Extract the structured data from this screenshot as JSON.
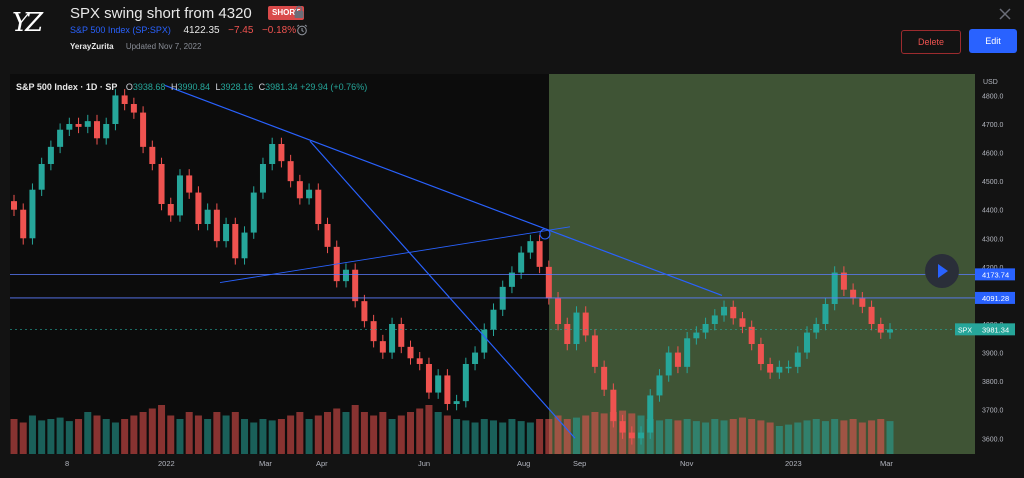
{
  "header": {
    "logo_text": "YZ",
    "title": "SPX swing short from 4320",
    "badge": "SHORT",
    "symbol_name": "S&P 500 Index",
    "symbol_code": "(SP:SPX)",
    "price": "4122.35",
    "change": "−7.45",
    "change_pct": "−0.18%",
    "author": "YerayZurita",
    "updated": "Updated Nov 7, 2022",
    "delete_label": "Delete",
    "edit_label": "Edit"
  },
  "legend": {
    "title": "S&P 500 Index · 1D · SP",
    "o_label": "O",
    "o_value": "3938.68",
    "h_label": "H",
    "h_value": "3990.84",
    "l_label": "L",
    "l_value": "3928.16",
    "c_label": "C",
    "c_value": "3981.34 +29.94 (+0.76%)"
  },
  "axis": {
    "currency": "USD",
    "y_ticks": [
      3600,
      3700,
      3800,
      3900,
      4000,
      4100,
      4200,
      4300,
      4400,
      4500,
      4600,
      4700,
      4800
    ],
    "x_labels": [
      "8",
      "2022",
      "Mar",
      "Apr",
      "Jun",
      "Aug",
      "Sep",
      "Nov",
      "2023",
      "Mar"
    ],
    "price_labels": [
      {
        "text": "4173.74",
        "value": 4173.74
      },
      {
        "text": "4091.28",
        "value": 4091.28
      }
    ],
    "last_label": {
      "symbol": "SPX",
      "text": "3981.34",
      "value": 3981.34
    }
  },
  "colors": {
    "up": "#26a69a",
    "down": "#ef5350",
    "highlight": "#3f5435",
    "trendline": "#2962ff"
  },
  "icons": {
    "lock": "lock-icon",
    "alarm": "alarm-icon",
    "close": "close-icon",
    "play": "play-icon"
  },
  "chart_data": {
    "type": "candlestick",
    "title": "S&P 500 Index · 1D · SP",
    "ylabel": "USD",
    "ylim": [
      3580,
      4840
    ],
    "closes": [
      4400,
      4300,
      4470,
      4560,
      4620,
      4680,
      4700,
      4690,
      4710,
      4650,
      4700,
      4800,
      4770,
      4740,
      4620,
      4560,
      4420,
      4380,
      4520,
      4460,
      4350,
      4400,
      4290,
      4350,
      4230,
      4320,
      4460,
      4560,
      4630,
      4570,
      4500,
      4440,
      4470,
      4350,
      4270,
      4150,
      4190,
      4080,
      4010,
      3940,
      3900,
      4000,
      3920,
      3880,
      3860,
      3760,
      3820,
      3720,
      3730,
      3860,
      3900,
      3980,
      4050,
      4130,
      4180,
      4250,
      4290,
      4200,
      4090,
      4000,
      3930,
      4040,
      3960,
      3850,
      3770,
      3660,
      3620,
      3600,
      3620,
      3750,
      3820,
      3900,
      3850,
      3950,
      3970,
      4000,
      4030,
      4060,
      4020,
      3990,
      3930,
      3860,
      3830,
      3850,
      3850,
      3900,
      3970,
      4000,
      4070,
      4180,
      4120,
      4090,
      4060,
      4000,
      3970,
      3981
    ],
    "volume_rel": [
      0.5,
      0.45,
      0.55,
      0.48,
      0.5,
      0.52,
      0.47,
      0.5,
      0.6,
      0.55,
      0.5,
      0.45,
      0.5,
      0.55,
      0.6,
      0.65,
      0.7,
      0.55,
      0.5,
      0.6,
      0.55,
      0.5,
      0.6,
      0.55,
      0.6,
      0.5,
      0.45,
      0.5,
      0.48,
      0.5,
      0.55,
      0.6,
      0.5,
      0.55,
      0.6,
      0.65,
      0.6,
      0.7,
      0.6,
      0.55,
      0.6,
      0.5,
      0.55,
      0.6,
      0.65,
      0.7,
      0.6,
      0.55,
      0.5,
      0.48,
      0.45,
      0.5,
      0.48,
      0.45,
      0.5,
      0.47,
      0.45,
      0.5,
      0.5,
      0.55,
      0.5,
      0.52,
      0.55,
      0.6,
      0.58,
      0.6,
      0.62,
      0.58,
      0.55,
      0.5,
      0.48,
      0.5,
      0.48,
      0.5,
      0.47,
      0.45,
      0.5,
      0.48,
      0.5,
      0.52,
      0.5,
      0.48,
      0.45,
      0.4,
      0.42,
      0.45,
      0.48,
      0.5,
      0.47,
      0.5,
      0.48,
      0.5,
      0.45,
      0.48,
      0.5,
      0.47
    ]
  }
}
